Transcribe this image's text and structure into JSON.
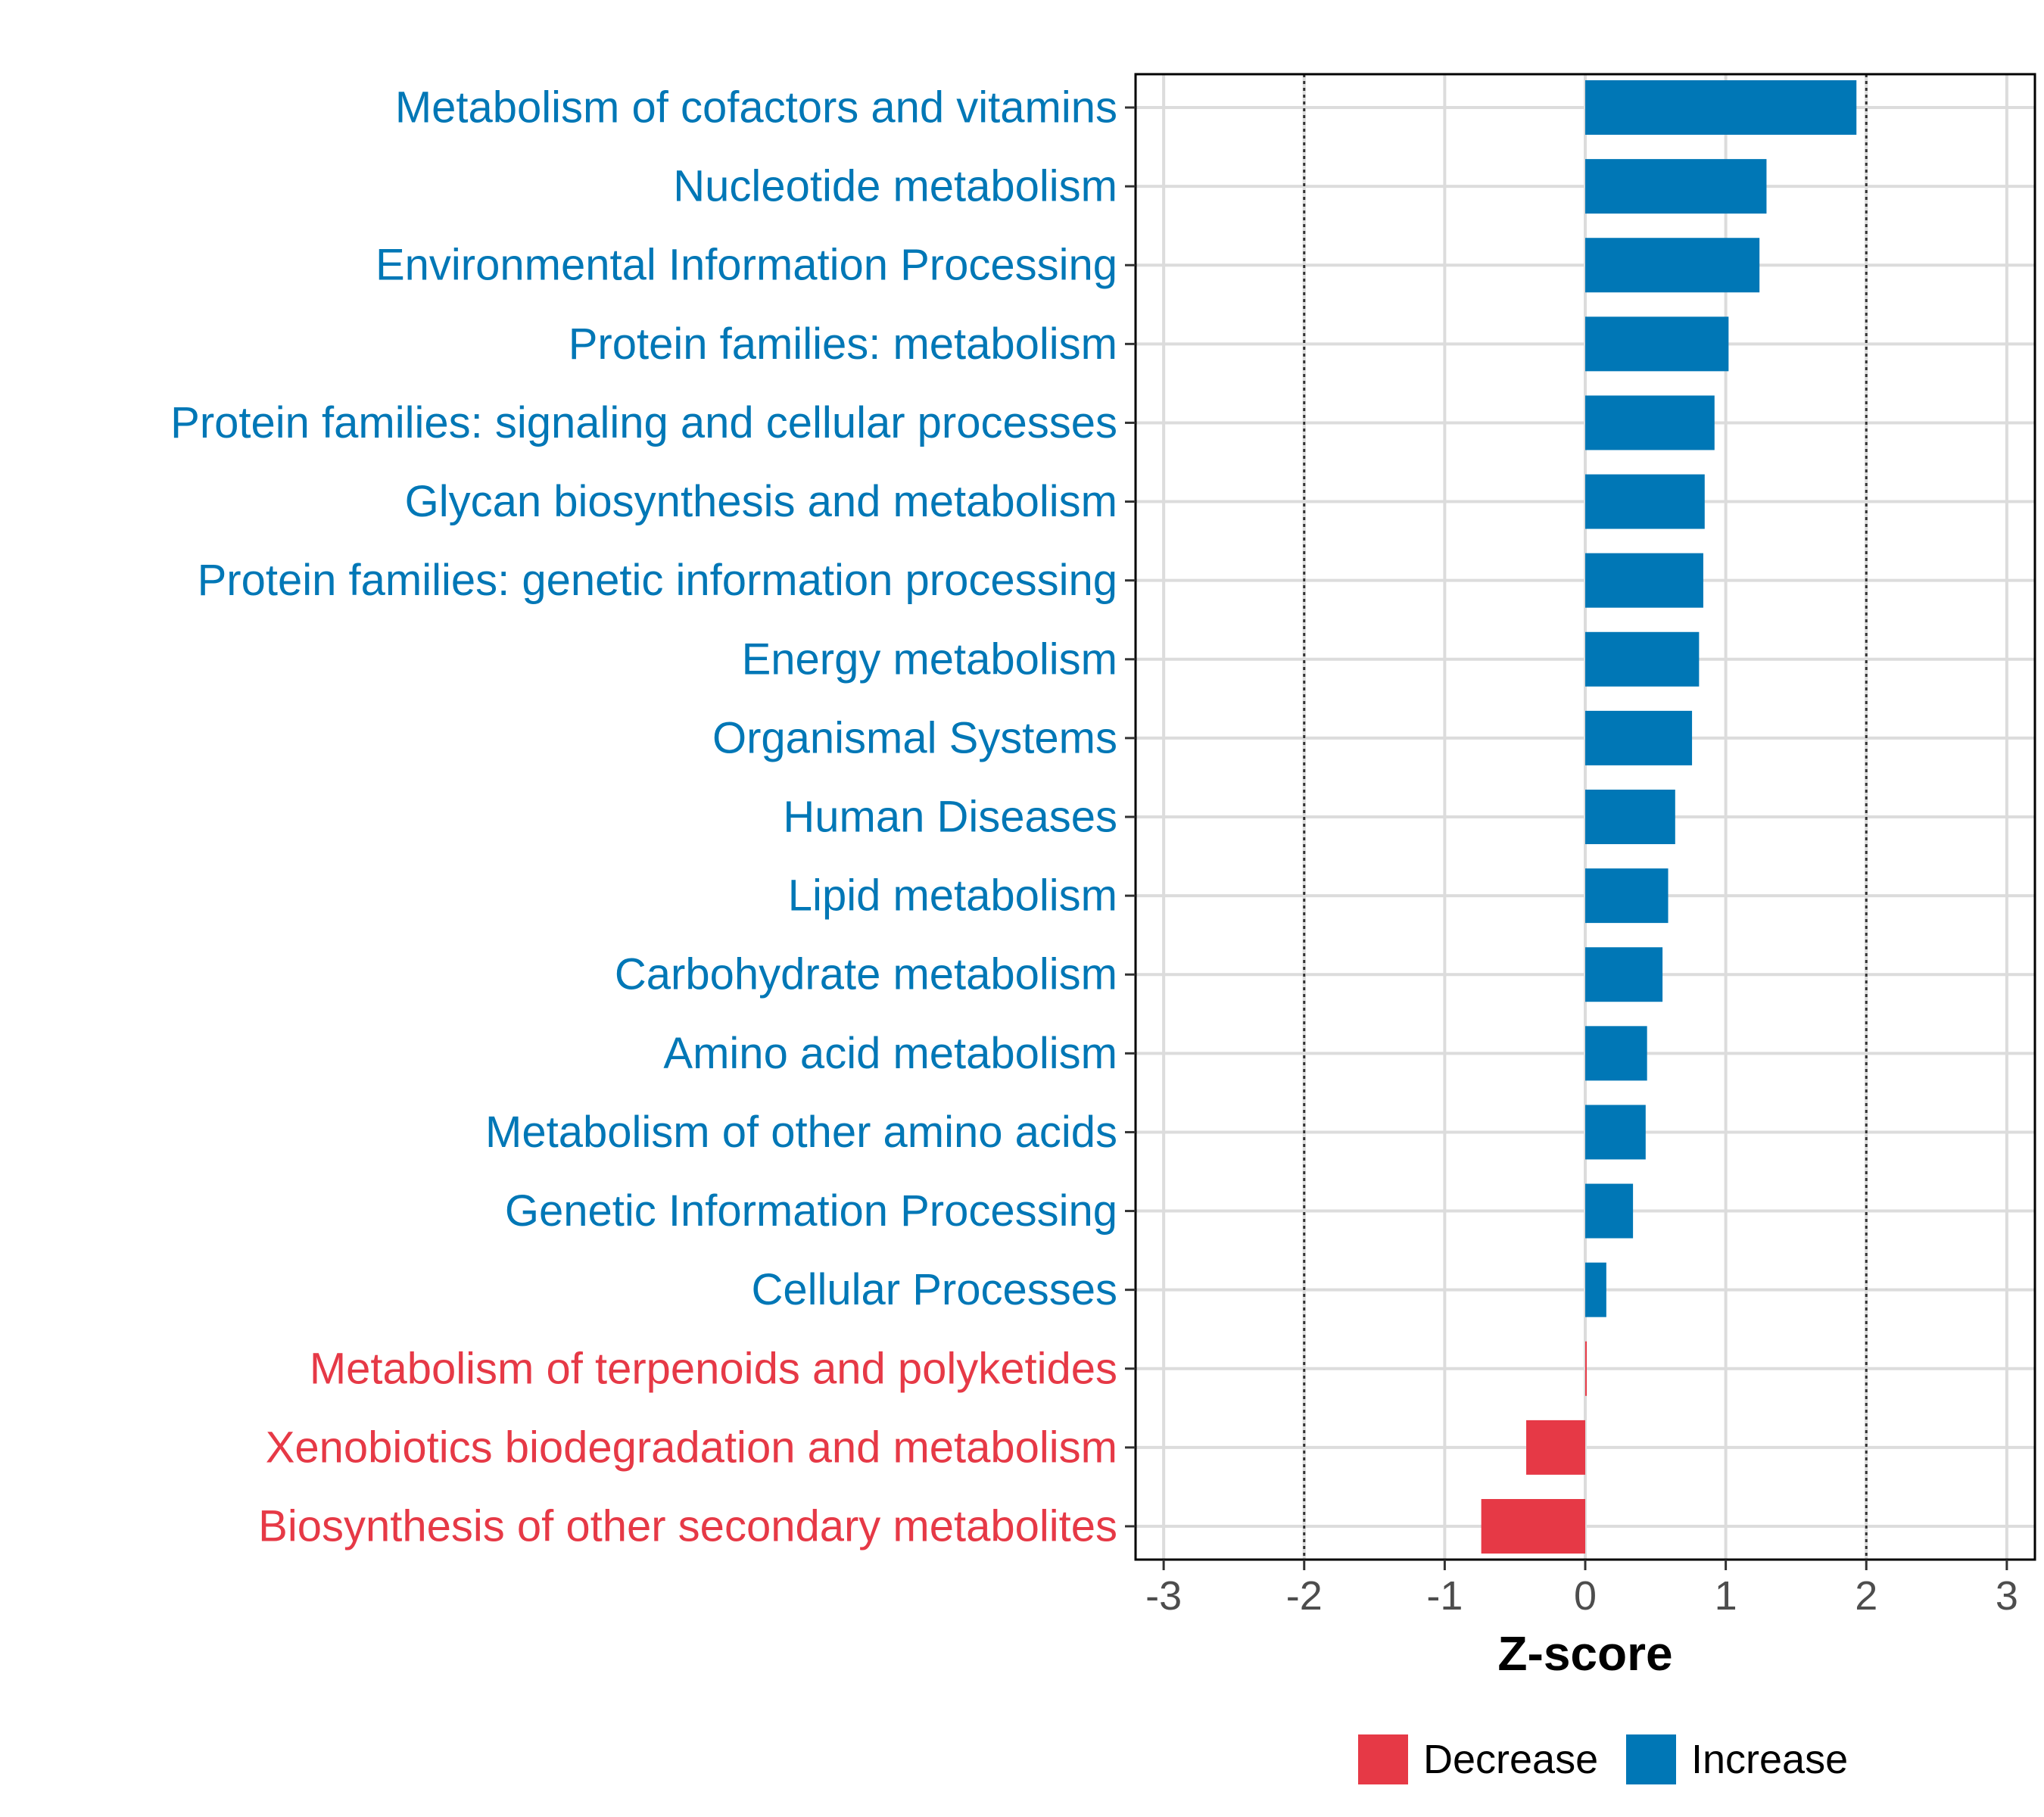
{
  "chart_data": {
    "type": "bar",
    "orientation": "horizontal",
    "title": "",
    "xlabel": "Z-score",
    "ylabel": "",
    "xlim": [
      -3.2,
      3.2
    ],
    "x_ticks": [
      -3,
      -2,
      -1,
      0,
      1,
      2,
      3
    ],
    "x_tick_labels": [
      "-3",
      "-2",
      "-1",
      "0",
      "1",
      "2",
      "3"
    ],
    "reference_lines": [
      -2,
      2
    ],
    "grid": true,
    "categories": [
      "Metabolism of cofactors and vitamins",
      "Nucleotide metabolism",
      "Environmental Information Processing",
      "Protein families: metabolism",
      "Protein families: signaling and cellular processes",
      "Glycan biosynthesis and metabolism",
      "Protein families: genetic information processing",
      "Energy metabolism",
      "Organismal Systems",
      "Human Diseases",
      "Lipid metabolism",
      "Carbohydrate metabolism",
      "Amino acid metabolism",
      "Metabolism of other amino acids",
      "Genetic Information Processing",
      "Cellular Processes",
      "Metabolism of terpenoids and polyketides",
      "Xenobiotics biodegradation and metabolism",
      "Biosynthesis of other secondary metabolites"
    ],
    "values": [
      1.93,
      1.29,
      1.24,
      1.02,
      0.92,
      0.85,
      0.84,
      0.81,
      0.76,
      0.64,
      0.59,
      0.55,
      0.44,
      0.43,
      0.34,
      0.15,
      0.01,
      -0.42,
      -0.74
    ],
    "groups": [
      "Increase",
      "Increase",
      "Increase",
      "Increase",
      "Increase",
      "Increase",
      "Increase",
      "Increase",
      "Increase",
      "Increase",
      "Increase",
      "Increase",
      "Increase",
      "Increase",
      "Increase",
      "Increase",
      "Decrease",
      "Decrease",
      "Decrease"
    ],
    "legend": {
      "placement": "bottom",
      "entries": [
        {
          "label": "Decrease",
          "color": "#e63946"
        },
        {
          "label": "Increase",
          "color": "#0077b6"
        }
      ]
    },
    "colors": {
      "Decrease": "#e63946",
      "Increase": "#0077b6"
    }
  }
}
